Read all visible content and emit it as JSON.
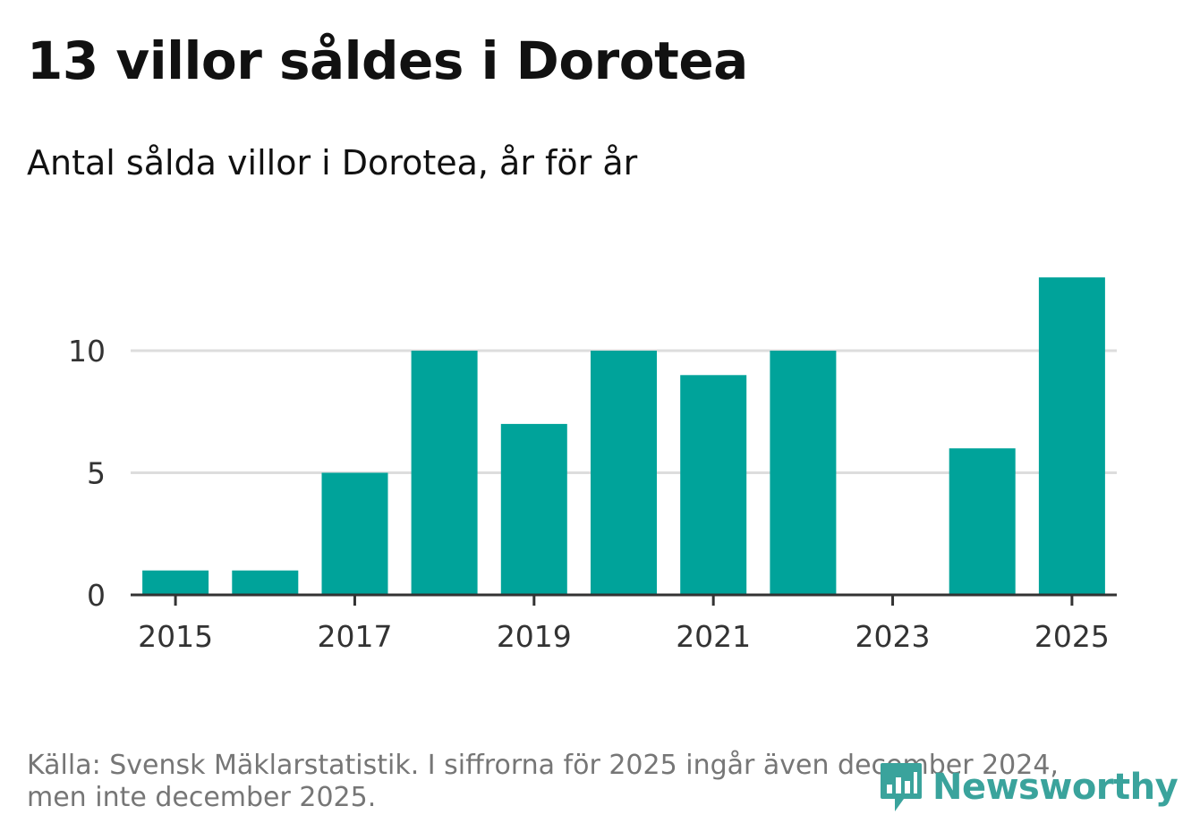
{
  "header": {
    "title": "13 villor såldes i Dorotea",
    "subtitle": "Antal sålda villor i Dorotea, år för år"
  },
  "colors": {
    "bar": "#00a39a",
    "grid": "#dddddd",
    "axis": "#333333",
    "brand": "#3aa39c",
    "footnote": "#767676"
  },
  "chart_data": {
    "type": "bar",
    "title": "13 villor såldes i Dorotea",
    "subtitle": "Antal sålda villor i Dorotea, år för år",
    "xlabel": "",
    "ylabel": "",
    "categories": [
      "2015",
      "2016",
      "2017",
      "2018",
      "2019",
      "2020",
      "2021",
      "2022",
      "2023",
      "2024",
      "2025"
    ],
    "values": [
      1,
      1,
      5,
      10,
      7,
      10,
      9,
      10,
      0,
      6,
      13
    ],
    "x_tick_labels": [
      "2015",
      "2017",
      "2019",
      "2021",
      "2023",
      "2025"
    ],
    "y_ticks": [
      0,
      5,
      10
    ],
    "y_tick_labels": [
      "0",
      "5",
      "10"
    ],
    "ylim": [
      0,
      13
    ],
    "grid": true
  },
  "footer": {
    "source_line1": "Källa: Svensk Mäklarstatistik. I siffrorna för 2025 ingår även december 2024,",
    "source_line2": "men inte december 2025.",
    "brand_icon": "newsworthy-bar-chart-icon",
    "brand_name": "Newsworthy"
  }
}
